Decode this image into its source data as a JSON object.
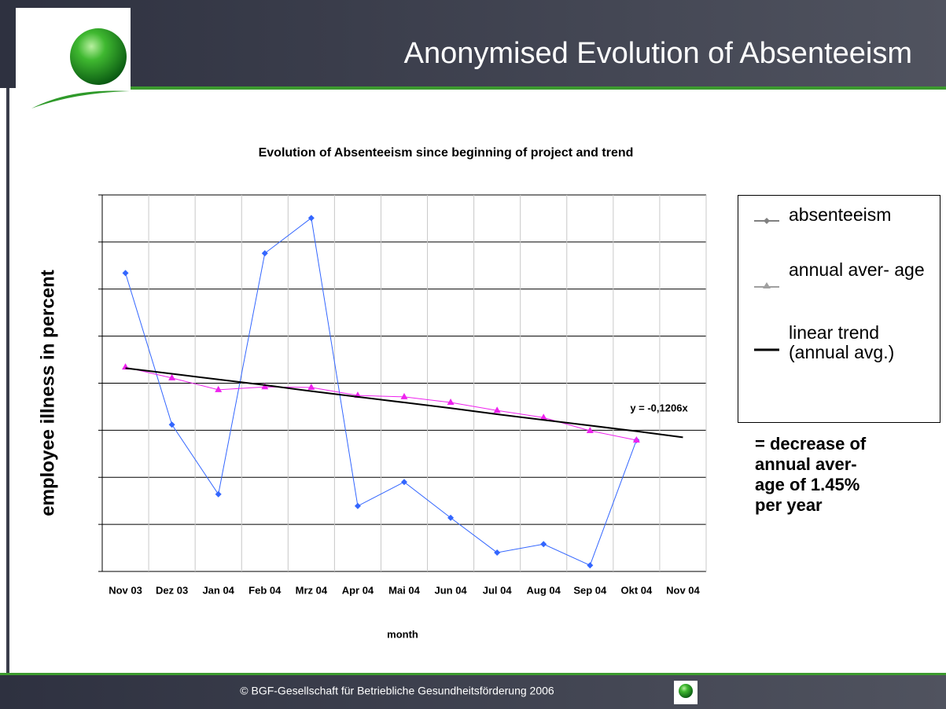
{
  "header": {
    "title": "Anonymised Evolution of Absenteeism"
  },
  "footer": {
    "text": "© BGF-Gesellschaft für Betriebliche Gesundheitsförderung 2006"
  },
  "chart_data": {
    "type": "line",
    "title": "Evolution of Absenteeism since beginning of project and trend",
    "y_label": "employee illness in percent",
    "x_label": "month",
    "categories": [
      "Nov 03",
      "Dez 03",
      "Jan 04",
      "Feb 04",
      "Mrz 04",
      "Apr 04",
      "Mai 04",
      "Jun 04",
      "Jul 04",
      "Aug 04",
      "Sep 04",
      "Okt 04",
      "Nov 04"
    ],
    "series": [
      {
        "name": "absenteeism",
        "color": "#3366ff",
        "legend_color": "#808080",
        "marker": "diamond",
        "values": [
          6.34,
          3.12,
          1.64,
          6.76,
          7.51,
          1.39,
          1.9,
          1.14,
          0.4,
          0.58,
          0.13,
          2.79,
          null
        ]
      },
      {
        "name": "annual aver- age",
        "color": "#ee22ee",
        "legend_color": "#a0a0a0",
        "marker": "triangle",
        "values": [
          4.34,
          4.11,
          3.86,
          3.92,
          3.91,
          3.74,
          3.71,
          3.59,
          3.42,
          3.27,
          2.99,
          2.79,
          null
        ]
      },
      {
        "name": "linear trend (annual avg.)",
        "color": "#000000",
        "legend_color": "#000000",
        "marker": "none",
        "values": [
          4.32,
          4.2,
          4.08,
          3.96,
          3.83,
          3.71,
          3.59,
          3.47,
          3.34,
          3.22,
          3.1,
          2.98,
          2.85
        ]
      }
    ],
    "ylim": [
      0,
      8
    ],
    "yticks": [
      0,
      1,
      2,
      3,
      4,
      5,
      6,
      7,
      8
    ],
    "ytick_labels": false,
    "grid": true,
    "legend": "right",
    "annotations": [
      "y = -0,1206x",
      "= decrease of\nannual aver-\nage of 1.45%\nper year"
    ]
  }
}
